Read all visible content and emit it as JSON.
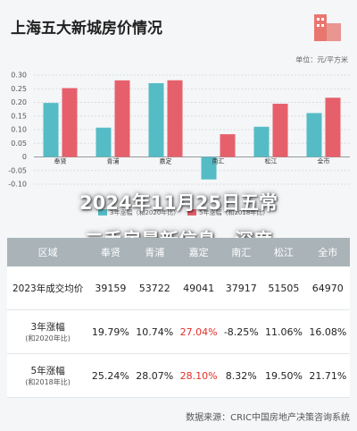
{
  "title": "上海五大新城房价情况",
  "chart_data": {
    "type": "bar",
    "unit": "单位：元/平方米",
    "categories": [
      "奉贤",
      "青浦",
      "嘉定",
      "南汇",
      "松江",
      "全市"
    ],
    "series": [
      {
        "name": "3年涨幅（和2020年比）",
        "color": "#55bcc6",
        "values": [
          0.1979,
          0.1074,
          0.2704,
          -0.0825,
          0.1106,
          0.1608
        ]
      },
      {
        "name": "5年涨幅（和2018年比）",
        "color": "#e6606b",
        "values": [
          0.2524,
          0.2807,
          0.281,
          0.0832,
          0.195,
          0.2171
        ]
      }
    ],
    "ylim": [
      -0.1,
      0.3
    ],
    "yticks": [
      {
        "value": -0.1,
        "label": "-0.10"
      },
      -0.05,
      0,
      0.05,
      {
        "value": 0.1,
        "label": "0.10"
      },
      0.15,
      {
        "value": 0.2,
        "label": "0.20"
      },
      0.25,
      {
        "value": 0.3,
        "label": "0.30"
      }
    ],
    "grid": true
  },
  "headline": [
    "2024年11月25日五常",
    "二手房最新信息，深度"
  ],
  "table": {
    "header": [
      "区域",
      "奉贤",
      "青浦",
      "嘉定",
      "南汇",
      "松江",
      "全市"
    ],
    "rows": [
      {
        "label": "2023年成交均价",
        "cells": [
          "39159",
          "53722",
          "49041",
          "37917",
          "51505",
          "64970"
        ]
      },
      {
        "label": "3年涨幅",
        "sublabel": "(和2020年比)",
        "cells": [
          "19.79%",
          "10.74%",
          "27.04%",
          "-8.25%",
          "11.06%",
          "16.08%"
        ]
      },
      {
        "label": "5年涨幅",
        "sublabel": "(和2018年比)",
        "cells": [
          "25.24%",
          "28.07%",
          "28.10%",
          "8.32%",
          "19.50%",
          "21.71%"
        ]
      }
    ]
  },
  "source": "数据来源：CRIC中国房地产决策咨询系统"
}
